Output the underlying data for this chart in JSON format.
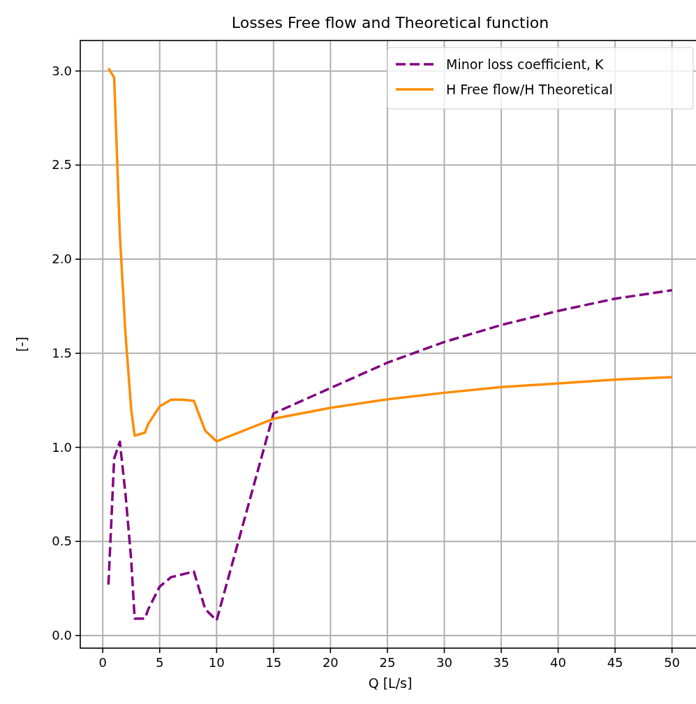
{
  "chart_data": {
    "type": "line",
    "title": "Losses Free flow and Theoretical function",
    "xlabel": "Q [L/s]",
    "ylabel": "[-]",
    "xlim": [
      -1.975,
      52.475
    ],
    "xticks": [
      0,
      5,
      10,
      15,
      20,
      25,
      30,
      35,
      40,
      45,
      50
    ],
    "ylim": [
      -0.067,
      3.162
    ],
    "yticks": [
      {
        "value": 0,
        "label": "0.0"
      },
      {
        "value": 0.5,
        "label": "0.5"
      },
      {
        "value": 1,
        "label": "1.0"
      },
      {
        "value": 1.5,
        "label": "1.5"
      },
      {
        "value": 2,
        "label": "2.0"
      },
      {
        "value": 2.5,
        "label": "2.5"
      },
      {
        "value": 3,
        "label": "3.0"
      }
    ],
    "grid": true,
    "legend": "top right",
    "series": [
      {
        "name": "Minor loss coefficient, K",
        "color": "#800080",
        "line_style": "dashed",
        "x": [
          0.5,
          1,
          1.5,
          2,
          2.5,
          2.8,
          3.7,
          4,
          5,
          6,
          8,
          9,
          10,
          15,
          20,
          25,
          30,
          35,
          40,
          45,
          50
        ],
        "values": [
          0.27,
          0.94,
          1.03,
          0.75,
          0.4,
          0.09,
          0.09,
          0.14,
          0.26,
          0.31,
          0.34,
          0.14,
          0.08,
          1.18,
          1.315,
          1.45,
          1.56,
          1.65,
          1.725,
          1.79,
          1.835
        ]
      },
      {
        "name": "H Free flow/H Theoretical",
        "color": "#ff8c00",
        "line_style": "solid",
        "x": [
          0.5,
          1,
          1.5,
          2,
          2.5,
          2.8,
          3.7,
          4,
          5,
          6,
          7,
          8,
          9,
          10,
          15,
          20,
          25,
          30,
          35,
          40,
          45,
          50
        ],
        "values": [
          3.015,
          2.965,
          2.13,
          1.6,
          1.2,
          1.062,
          1.078,
          1.125,
          1.218,
          1.253,
          1.253,
          1.247,
          1.088,
          1.032,
          1.152,
          1.21,
          1.255,
          1.29,
          1.32,
          1.34,
          1.36,
          1.373
        ]
      }
    ]
  }
}
